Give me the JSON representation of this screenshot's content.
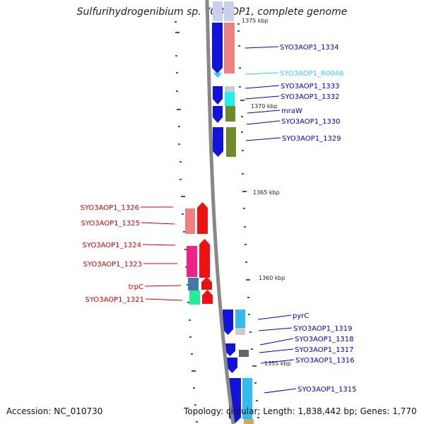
{
  "title": "Sulfurihydrogenibium sp. YO3AOP1, complete genome",
  "footer": {
    "accession": "Accession: NC_010730",
    "topology": "Topology: circular; Length: 1,838,442 bp; Genes: 1,770"
  },
  "colors": {
    "forward_label": "#0000cc",
    "reverse_label": "#cc0000",
    "rna_label": "#33ccff",
    "backbone": "#888888",
    "tick": "#1a7a1a"
  },
  "scale_labels": [
    {
      "text": "1375 kbp"
    },
    {
      "text": "1370 kbp"
    },
    {
      "text": "1365 kbp"
    },
    {
      "text": "1360 kbp"
    },
    {
      "text": "1355 kbp"
    }
  ],
  "forward_labels": [
    {
      "text": "SYO3AOP1_1334",
      "kind": "gene"
    },
    {
      "text": "SYO3AOP1_R0046",
      "kind": "rna"
    },
    {
      "text": "SYO3AOP1_1333",
      "kind": "gene"
    },
    {
      "text": "SYO3AOP1_1332",
      "kind": "gene"
    },
    {
      "text": "mraW",
      "kind": "gene"
    },
    {
      "text": "SYO3AOP1_1330",
      "kind": "gene"
    },
    {
      "text": "SYO3AOP1_1329",
      "kind": "gene"
    },
    {
      "text": "pyrC",
      "kind": "gene"
    },
    {
      "text": "SYO3AOP1_1319",
      "kind": "gene"
    },
    {
      "text": "SYO3AOP1_1318",
      "kind": "gene"
    },
    {
      "text": "SYO3AOP1_1317",
      "kind": "gene"
    },
    {
      "text": "SYO3AOP1_1316",
      "kind": "gene"
    },
    {
      "text": "SYO3AOP1_1315",
      "kind": "gene"
    }
  ],
  "reverse_labels": [
    {
      "text": "SYO3AOP1_1326"
    },
    {
      "text": "SYO3AOP1_1325"
    },
    {
      "text": "SYO3AOP1_1324"
    },
    {
      "text": "SYO3AOP1_1323"
    },
    {
      "text": "trpC"
    },
    {
      "text": "SYO3AOP1_1321"
    }
  ]
}
